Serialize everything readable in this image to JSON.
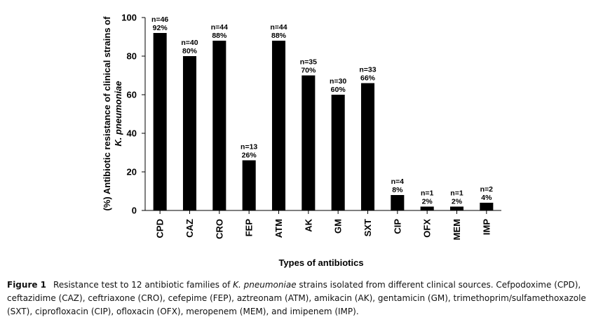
{
  "chart_data": {
    "type": "bar",
    "categories": [
      "CPD",
      "CAZ",
      "CRO",
      "FEP",
      "ATM",
      "AK",
      "GM",
      "SXT",
      "CIP",
      "OFX",
      "MEM",
      "IMP"
    ],
    "values": [
      92,
      80,
      88,
      26,
      88,
      70,
      60,
      66,
      8,
      2,
      2,
      4
    ],
    "counts": [
      "n=46",
      "n=40",
      "n=44",
      "n=13",
      "n=44",
      "n=35",
      "n=30",
      "n=33",
      "n=4",
      "n=1",
      "n=1",
      "n=2"
    ],
    "percent_labels": [
      "92%",
      "80%",
      "88%",
      "26%",
      "88%",
      "70%",
      "60%",
      "66%",
      "8%",
      "2%",
      "2%",
      "4%"
    ],
    "yticks": [
      "0",
      "20",
      "40",
      "60",
      "80",
      "100"
    ],
    "ylim": [
      0,
      100
    ],
    "xlabel": "Types of antibiotics",
    "ylabel_line1": "(%) Antibiotic resistance of  clinical strains of",
    "ylabel_line2": "K. pneumoniae",
    "bar_color": "#000000",
    "grid": false,
    "legend": "none"
  },
  "caption": {
    "figure_label": "Figure 1",
    "text_before": "Resistance test to 12 antibiotic families of ",
    "organism": "K. pneumoniae",
    "text_after": " strains isolated from different clinical sources. Cefpodoxime (CPD), ceftazidime (CAZ), ceftriaxone (CRO), cefepime (FEP), aztreonam (ATM), amikacin (AK), gentamicin (GM), trimethoprim/sulfamethoxazole (SXT), ciprofloxacin (CIP), ofloxacin (OFX), meropenem (MEM), and imipenem (IMP)."
  }
}
